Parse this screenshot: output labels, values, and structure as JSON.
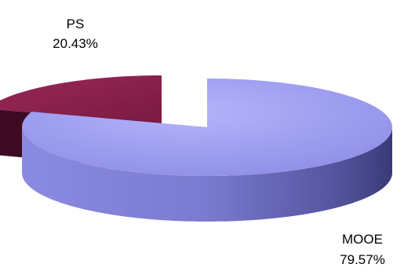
{
  "chart_data": {
    "type": "pie",
    "style": "3d-exploded",
    "legend": "none",
    "slices": [
      {
        "name": "PS",
        "value": 20.43,
        "value_label": "20.43%",
        "color_top": "#8a1f4c",
        "color_side": "#3e0a22"
      },
      {
        "name": "MOOE",
        "value": 79.57,
        "value_label": "79.57%",
        "color_top": "#9a9af0",
        "color_side": "#4a4a96"
      }
    ]
  }
}
